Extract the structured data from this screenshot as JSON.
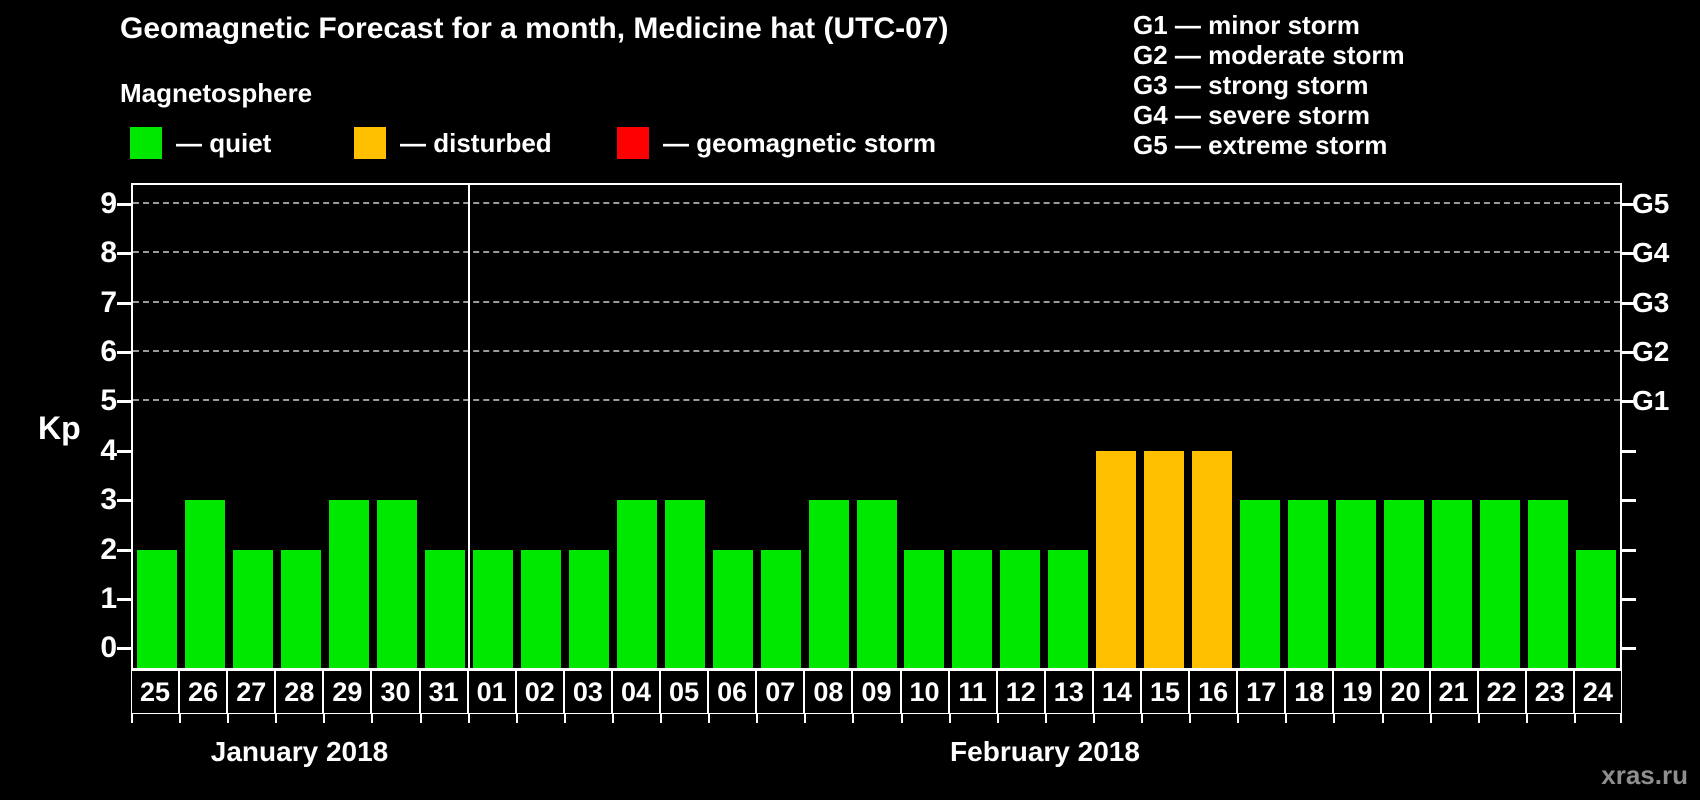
{
  "title": "Geomagnetic Forecast for a month, Medicine hat (UTC-07)",
  "subtitle": "Magnetosphere",
  "watermark": "xras.ru",
  "kp_axis_label": "Kp",
  "legend": {
    "items": [
      {
        "name": "quiet",
        "label": "— quiet",
        "color": "#00e800"
      },
      {
        "name": "disturbed",
        "label": "— disturbed",
        "color": "#ffc000"
      },
      {
        "name": "storm",
        "label": "— geomagnetic storm",
        "color": "#ff0000"
      }
    ]
  },
  "storm_scale_legend": [
    "G1 — minor storm",
    "G2 — moderate storm",
    "G3 — strong storm",
    "G4 — severe storm",
    "G5 — extreme storm"
  ],
  "chart_data": {
    "type": "bar",
    "title": "Geomagnetic Forecast for a month, Medicine hat (UTC-07)",
    "ylabel": "Kp",
    "ylim": [
      0,
      9
    ],
    "grid": "dashed horizontal lines at Kp 5-9 only",
    "legend_position": "top",
    "y_ticks_left": [
      0,
      1,
      2,
      3,
      4,
      5,
      6,
      7,
      8,
      9
    ],
    "y_ticks_right": [
      {
        "kp": 5,
        "label": "G1"
      },
      {
        "kp": 6,
        "label": "G2"
      },
      {
        "kp": 7,
        "label": "G3"
      },
      {
        "kp": 8,
        "label": "G4"
      },
      {
        "kp": 9,
        "label": "G5"
      }
    ],
    "gridlines_kp": [
      5,
      6,
      7,
      8,
      9
    ],
    "months": [
      {
        "label": "January 2018",
        "days": 7
      },
      {
        "label": "February 2018",
        "days": 24
      }
    ],
    "categories": [
      "25",
      "26",
      "27",
      "28",
      "29",
      "30",
      "31",
      "01",
      "02",
      "03",
      "04",
      "05",
      "06",
      "07",
      "08",
      "09",
      "10",
      "11",
      "12",
      "13",
      "14",
      "15",
      "16",
      "17",
      "18",
      "19",
      "20",
      "21",
      "22",
      "23",
      "24"
    ],
    "values": [
      2,
      3,
      2,
      2,
      3,
      3,
      2,
      2,
      2,
      2,
      3,
      3,
      2,
      2,
      3,
      3,
      2,
      2,
      2,
      2,
      4,
      4,
      4,
      3,
      3,
      3,
      3,
      3,
      3,
      3,
      2
    ],
    "statuses": [
      "quiet",
      "quiet",
      "quiet",
      "quiet",
      "quiet",
      "quiet",
      "quiet",
      "quiet",
      "quiet",
      "quiet",
      "quiet",
      "quiet",
      "quiet",
      "quiet",
      "quiet",
      "quiet",
      "quiet",
      "quiet",
      "quiet",
      "quiet",
      "disturbed",
      "disturbed",
      "disturbed",
      "quiet",
      "quiet",
      "quiet",
      "quiet",
      "quiet",
      "quiet",
      "quiet",
      "quiet"
    ],
    "colors_by_status": {
      "quiet": "#00e800",
      "disturbed": "#ffc000",
      "storm": "#ff0000"
    }
  }
}
